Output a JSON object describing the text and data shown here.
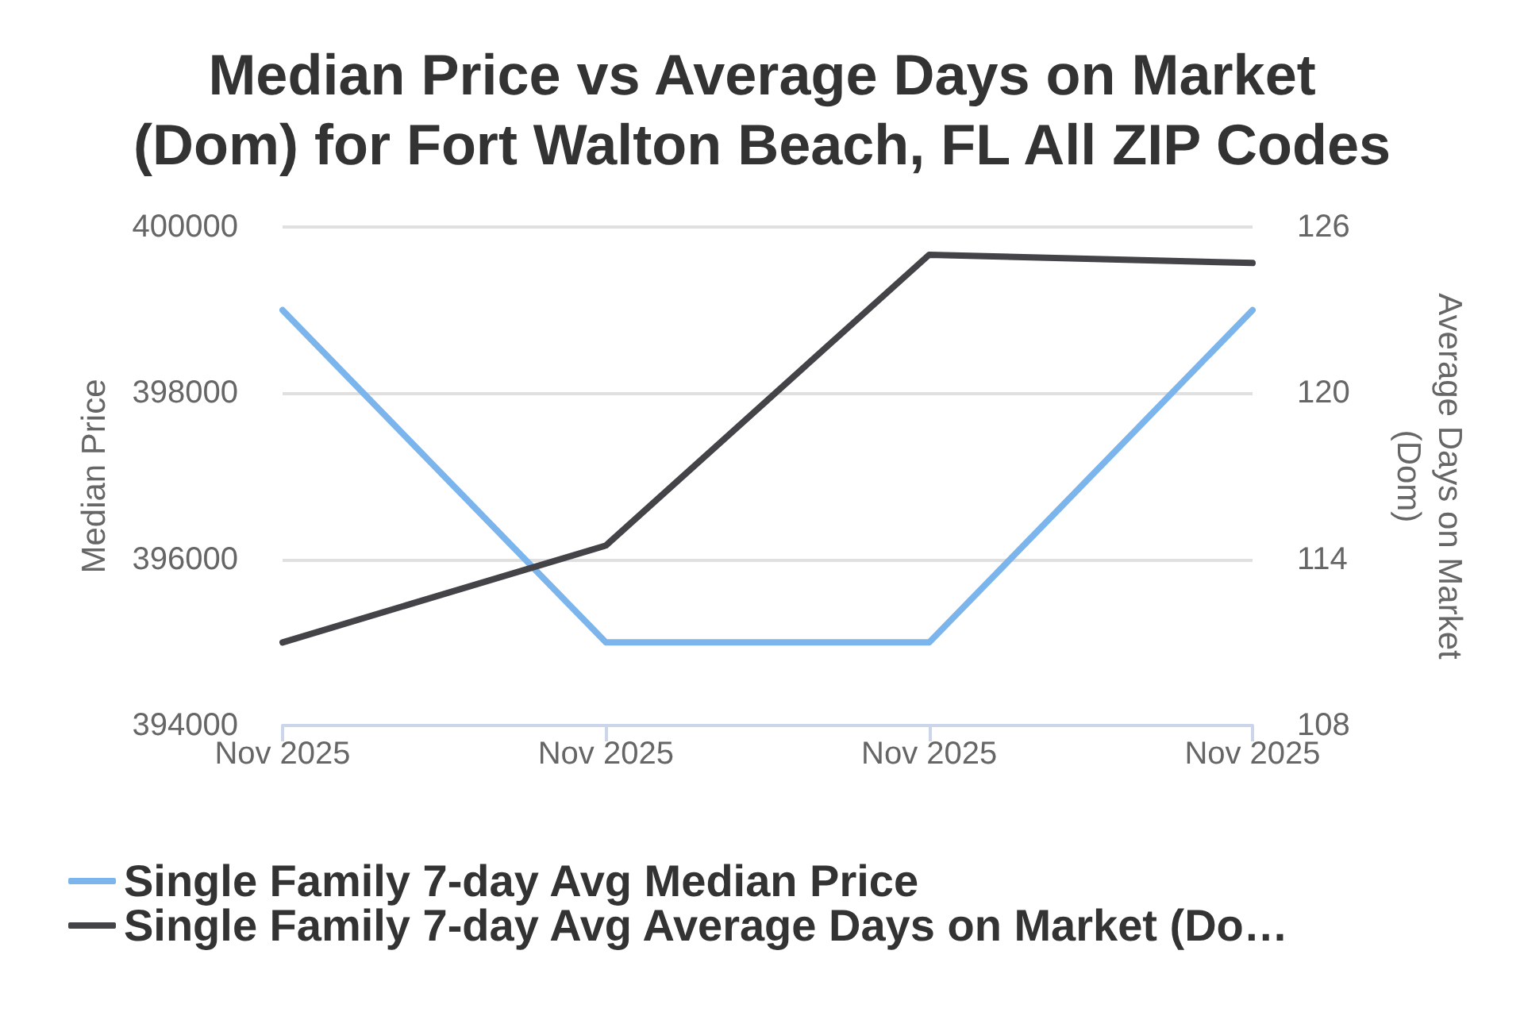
{
  "chart_data": {
    "type": "line",
    "title": "Median Price vs Average Days on Market\n(Dom) for Fort Walton Beach, FL All ZIP Codes",
    "ylabel": "Median Price",
    "y2label": "Average Days on Market\n(Dom)",
    "categories": [
      "Nov 2025",
      "Nov 2025",
      "Nov 2025",
      "Nov 2025"
    ],
    "series": [
      {
        "name": "Single Family 7-day Avg Median Price",
        "color": "#7cb5ec",
        "values": [
          399000,
          395000,
          395000,
          399000
        ]
      },
      {
        "name": "Single Family 7-day Avg Average Days on Market (Do…",
        "color": "#434348",
        "axis": "y2",
        "values": [
          111,
          114.5,
          125,
          124.7
        ]
      }
    ],
    "ylim": [
      394000,
      400000
    ],
    "yticks": [
      394000,
      396000,
      398000,
      400000
    ],
    "y2lim": [
      108,
      126
    ],
    "y2ticks": [
      108,
      114,
      120,
      126
    ],
    "grid": "y",
    "legend": "bottom",
    "marker": "none",
    "line_style": "solid"
  }
}
